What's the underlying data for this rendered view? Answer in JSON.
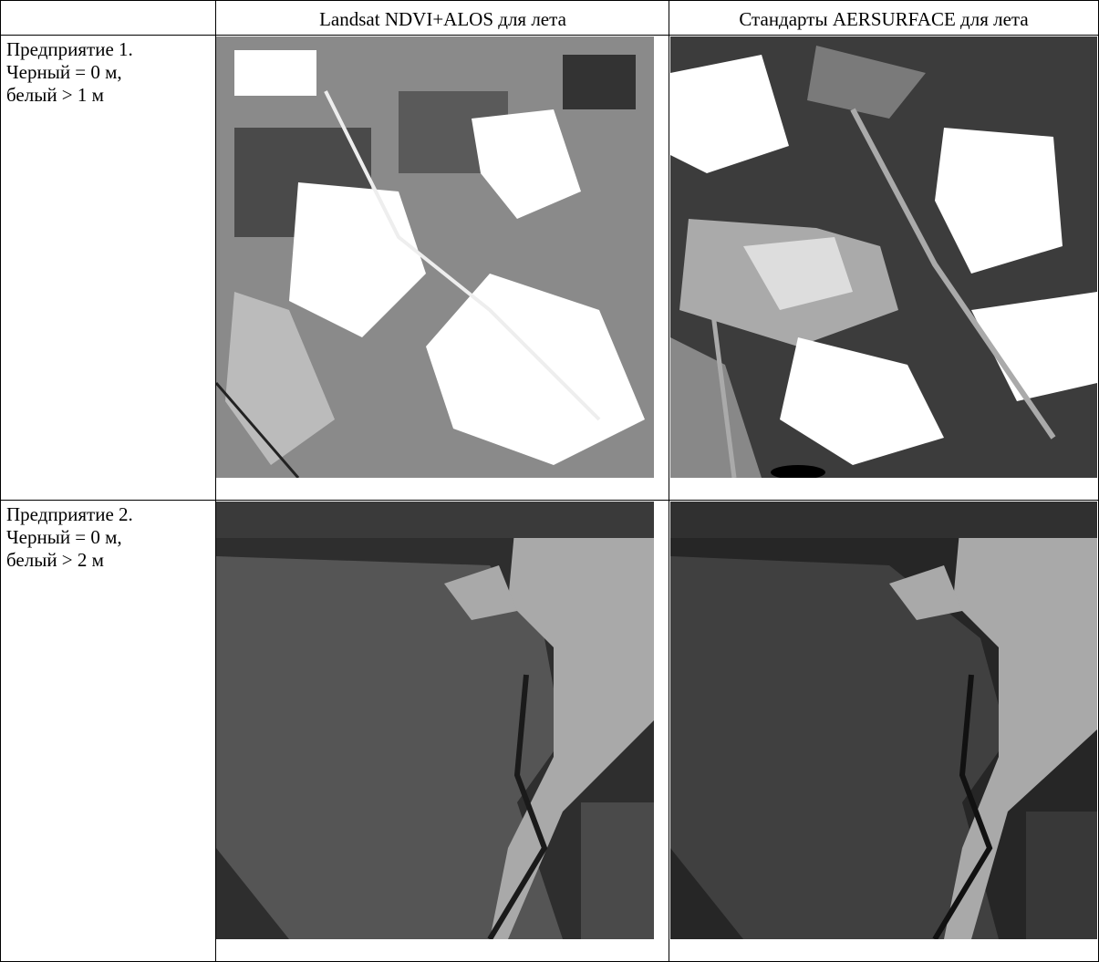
{
  "table": {
    "header": [
      "Landsat NDVI+ALOS для лета",
      "Стандарты AERSURFACE для лета"
    ],
    "rows": [
      {
        "label": [
          "Предприятие 1.",
          "Черный = 0 м,",
          "белый > 1 м"
        ]
      },
      {
        "label": [
          "Предприятие 2.",
          "Черный = 0 м,",
          "белый > 2 м"
        ]
      }
    ]
  }
}
